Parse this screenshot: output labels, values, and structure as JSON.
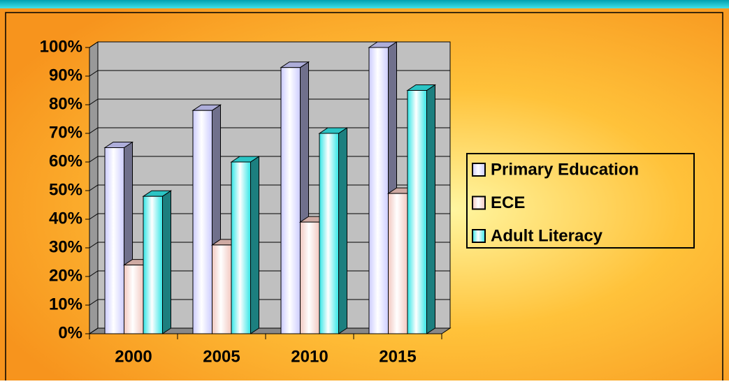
{
  "chart_data": {
    "type": "bar",
    "categories": [
      "2000",
      "2005",
      "2010",
      "2015"
    ],
    "series": [
      {
        "name": "Primary Education",
        "color": "#ccccff",
        "values": [
          65,
          78,
          93,
          100
        ]
      },
      {
        "name": "ECE",
        "color": "#f2c8c0",
        "values": [
          24,
          31,
          39,
          49
        ]
      },
      {
        "name": "Adult Literacy",
        "color": "#33e6e6",
        "values": [
          48,
          60,
          70,
          85
        ]
      }
    ],
    "ylim": [
      0,
      100
    ],
    "yticks": [
      {
        "value": 0,
        "label": "0%"
      },
      {
        "value": 10,
        "label": "10%"
      },
      {
        "value": 20,
        "label": "20%"
      },
      {
        "value": 30,
        "label": "30%"
      },
      {
        "value": 40,
        "label": "40%"
      },
      {
        "value": 50,
        "label": "50%"
      },
      {
        "value": 60,
        "label": "60%"
      },
      {
        "value": 70,
        "label": "70%"
      },
      {
        "value": 80,
        "label": "80%"
      },
      {
        "value": 90,
        "label": "90%"
      },
      {
        "value": 100,
        "label": "100%"
      }
    ],
    "grid": true,
    "legend": "right"
  }
}
